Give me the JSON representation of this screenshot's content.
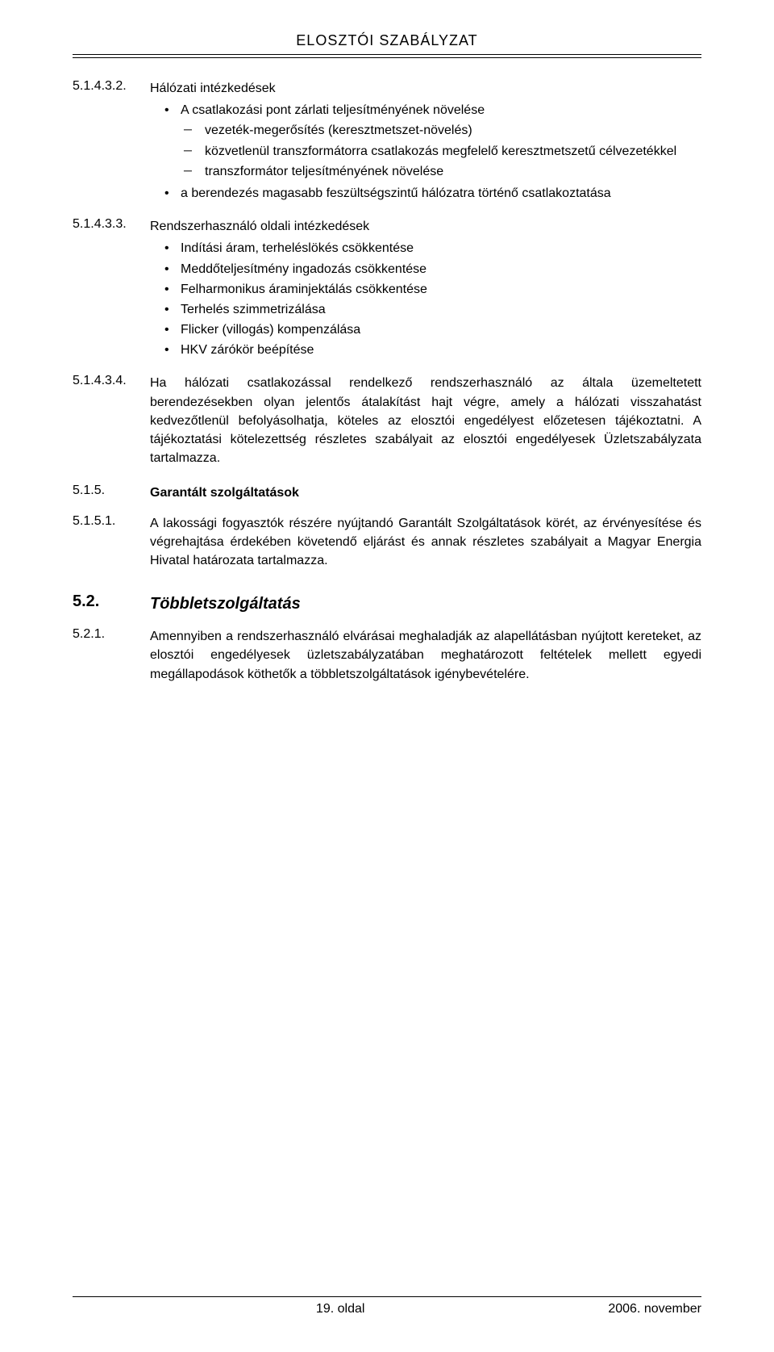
{
  "header": {
    "title": "ELOSZTÓI SZABÁLYZAT"
  },
  "s1": {
    "num": "5.1.4.3.2.",
    "title": "Hálózati intézkedések",
    "b1": "A csatlakozási pont zárlati teljesítményének növelése",
    "d1": "vezeték-megerősítés (keresztmetszet-növelés)",
    "d2": "közvetlenül transzformátorra csatlakozás megfelelő keresztmetszetű célvezetékkel",
    "d3": "transzformátor teljesítményének növelése",
    "b2": "a berendezés magasabb feszültségszintű hálózatra történő csatlakoztatása"
  },
  "s2": {
    "num": "5.1.4.3.3.",
    "title": "Rendszerhasználó oldali intézkedések",
    "b1": "Indítási áram, terheléslökés csökkentése",
    "b2": "Meddőteljesítmény ingadozás csökkentése",
    "b3": "Felharmonikus áraminjektálás csökkentése",
    "b4": "Terhelés szimmetrizálása",
    "b5": "Flicker (villogás) kompenzálása",
    "b6": "HKV zárókör beépítése"
  },
  "s3": {
    "num": "5.1.4.3.4.",
    "text": "Ha hálózati csatlakozással rendelkező rendszerhasználó az általa üzemeltetett berendezésekben olyan jelentős átalakítást hajt végre, amely a hálózati visszahatást kedvezőtlenül befolyásolhatja, köteles az elosztói engedélyest előzetesen tájékoztatni. A tájékoztatási kötelezettség részletes szabályait az elosztói engedélyesek Üzletszabályzata tartalmazza."
  },
  "s4": {
    "num": "5.1.5.",
    "title": "Garantált szolgáltatások"
  },
  "s5": {
    "num": "5.1.5.1.",
    "text": "A lakossági fogyasztók részére nyújtandó Garantált Szolgáltatások körét, az érvényesítése és végrehajtása érdekében követendő eljárást és annak részletes szabályait a Magyar Energia Hivatal határozata tartalmazza."
  },
  "s6": {
    "num": "5.2.",
    "title": "Többletszolgáltatás"
  },
  "s7": {
    "num": "5.2.1.",
    "text": "Amennyiben a rendszerhasználó elvárásai meghaladják az alapellátásban nyújtott kereteket, az elosztói engedélyesek üzletszabályzatában meghatározott feltételek mellett egyedi megállapodások köthetők a többletszolgáltatások igénybevételére."
  },
  "footer": {
    "page": "19. oldal",
    "date": "2006. november"
  }
}
